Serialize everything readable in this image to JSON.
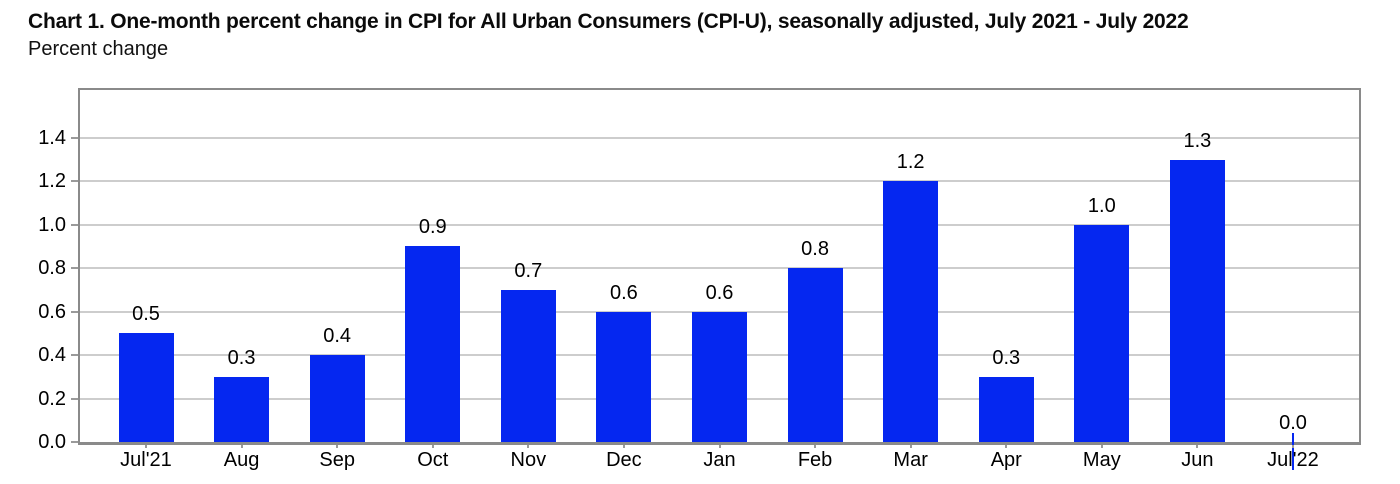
{
  "page": {
    "title": "Chart 1. One-month percent change in CPI for All Urban Consumers (CPI-U), seasonally adjusted, July 2021 - July 2022",
    "subtitle": "Percent change"
  },
  "chart_data": {
    "type": "bar",
    "title": "Chart 1. One-month percent change in CPI for All Urban Consumers (CPI-U), seasonally adjusted, July 2021 - July 2022",
    "subtitle": "Percent change",
    "ylabel": "Percent change",
    "xlabel": "",
    "categories": [
      "Jul'21",
      "Aug",
      "Sep",
      "Oct",
      "Nov",
      "Dec",
      "Jan",
      "Feb",
      "Mar",
      "Apr",
      "May",
      "Jun",
      "Jul'22"
    ],
    "values": [
      0.5,
      0.3,
      0.4,
      0.9,
      0.7,
      0.6,
      0.6,
      0.8,
      1.2,
      0.3,
      1.0,
      1.3,
      0.0
    ],
    "value_labels": [
      "0.5",
      "0.3",
      "0.4",
      "0.9",
      "0.7",
      "0.6",
      "0.6",
      "0.8",
      "1.2",
      "0.3",
      "1.0",
      "1.3",
      "0.0"
    ],
    "ylim": [
      0,
      1.62
    ],
    "yticks": [
      0.0,
      0.2,
      0.4,
      0.6,
      0.8,
      1.0,
      1.2,
      1.4
    ],
    "ytick_labels": [
      "0.0",
      "0.2",
      "0.4",
      "0.6",
      "0.8",
      "1.0",
      "1.2",
      "1.4"
    ],
    "grid": true,
    "legend_position": "none",
    "data_labels": true,
    "colors": {
      "bar": "#0527F0",
      "grid": "#cdcdcd",
      "frame": "#8a8a8a",
      "tick": "#9a9a9a",
      "text": "#000000"
    }
  }
}
